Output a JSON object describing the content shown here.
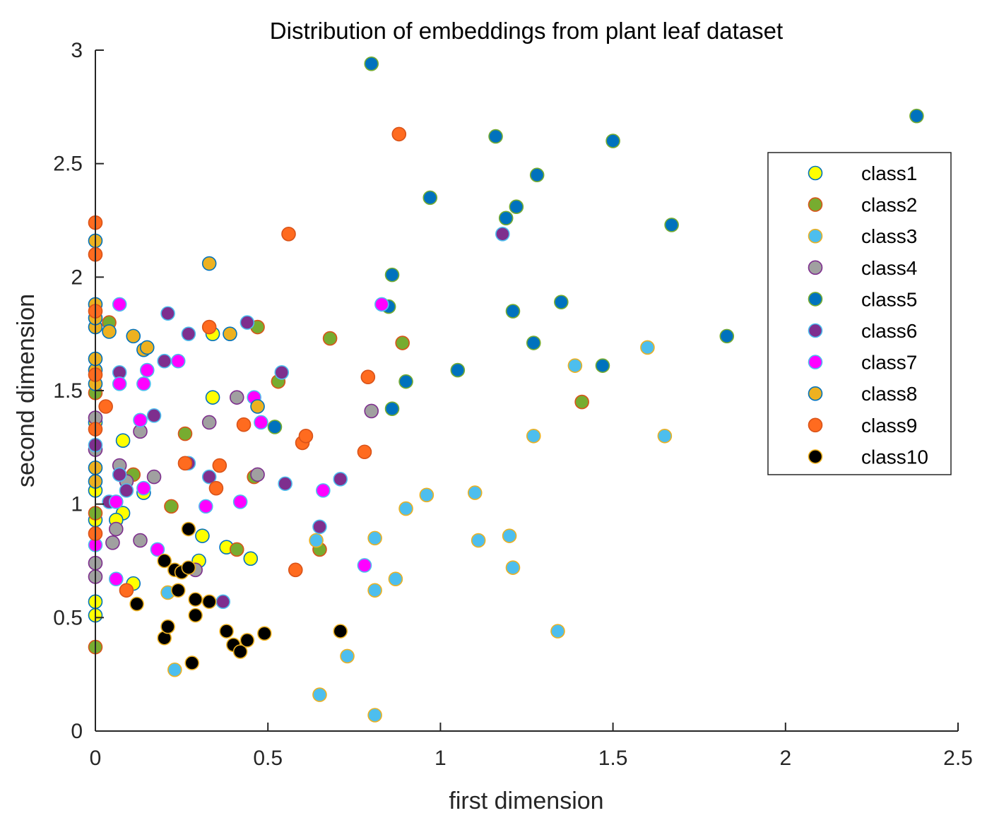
{
  "chart_data": {
    "type": "scatter",
    "title": "Distribution of embeddings from plant leaf dataset",
    "xlabel": "first dimension",
    "ylabel": "second dimension",
    "xlim": [
      0,
      2.5
    ],
    "ylim": [
      0,
      3
    ],
    "xticks": [
      "0",
      "0.5",
      "1",
      "1.5",
      "2",
      "2.5"
    ],
    "yticks": [
      "0",
      "0.5",
      "1",
      "1.5",
      "2",
      "2.5",
      "3"
    ],
    "legend_position": "top-right",
    "series": [
      {
        "name": "class1",
        "fill": "#ffff00",
        "edge": "#0072bd",
        "points": [
          [
            0,
            0.51
          ],
          [
            0,
            0.57
          ],
          [
            0,
            0.93
          ],
          [
            0,
            1.06
          ],
          [
            0,
            1.36
          ],
          [
            0.08,
            0.96
          ],
          [
            0.08,
            1.28
          ],
          [
            0.14,
            1.05
          ],
          [
            0.3,
            0.75
          ],
          [
            0.31,
            0.86
          ],
          [
            0.34,
            1.47
          ],
          [
            0.34,
            1.75
          ],
          [
            0.38,
            0.81
          ],
          [
            0.45,
            0.76
          ],
          [
            0.11,
            0.65
          ],
          [
            0.06,
            0.93
          ]
        ]
      },
      {
        "name": "class2",
        "fill": "#77ac30",
        "edge": "#d95319",
        "points": [
          [
            0,
            0.37
          ],
          [
            0,
            0.96
          ],
          [
            0,
            1.49
          ],
          [
            0.04,
            1.8
          ],
          [
            0.11,
            1.13
          ],
          [
            0.22,
            0.99
          ],
          [
            0.26,
            1.31
          ],
          [
            0.41,
            0.8
          ],
          [
            0.47,
            1.78
          ],
          [
            0.53,
            1.54
          ],
          [
            0.65,
            0.8
          ],
          [
            0.68,
            1.73
          ],
          [
            0.89,
            1.71
          ],
          [
            1.41,
            1.45
          ],
          [
            0.46,
            1.12
          ]
        ]
      },
      {
        "name": "class3",
        "fill": "#4dbeee",
        "edge": "#edb120",
        "points": [
          [
            0.23,
            0.27
          ],
          [
            0.21,
            0.61
          ],
          [
            0.65,
            0.16
          ],
          [
            0.73,
            0.33
          ],
          [
            0.64,
            0.84
          ],
          [
            0.81,
            0.62
          ],
          [
            0.81,
            0.85
          ],
          [
            0.81,
            0.07
          ],
          [
            0.87,
            0.67
          ],
          [
            0.9,
            0.98
          ],
          [
            0.96,
            1.04
          ],
          [
            1.1,
            1.05
          ],
          [
            1.11,
            0.84
          ],
          [
            1.2,
            0.86
          ],
          [
            1.21,
            0.72
          ],
          [
            1.27,
            1.3
          ],
          [
            1.34,
            0.44
          ],
          [
            1.39,
            1.61
          ],
          [
            1.6,
            1.69
          ],
          [
            1.65,
            1.3
          ]
        ]
      },
      {
        "name": "class4",
        "fill": "#a0a0a0",
        "edge": "#7e2f8e",
        "points": [
          [
            0,
            0.68
          ],
          [
            0,
            0.74
          ],
          [
            0,
            1.24
          ],
          [
            0,
            1.38
          ],
          [
            0.05,
            0.83
          ],
          [
            0.06,
            0.89
          ],
          [
            0.07,
            1.17
          ],
          [
            0.09,
            1.1
          ],
          [
            0.13,
            0.84
          ],
          [
            0.13,
            1.32
          ],
          [
            0.17,
            1.12
          ],
          [
            0.33,
            1.36
          ],
          [
            0.41,
            1.47
          ],
          [
            0.47,
            1.13
          ],
          [
            0.8,
            1.41
          ],
          [
            0.29,
            0.71
          ]
        ]
      },
      {
        "name": "class5",
        "fill": "#0072bd",
        "edge": "#77ac30",
        "points": [
          [
            0.52,
            1.34
          ],
          [
            0.8,
            2.94
          ],
          [
            0.85,
            1.87
          ],
          [
            0.86,
            2.01
          ],
          [
            0.86,
            1.42
          ],
          [
            0.9,
            1.54
          ],
          [
            0.97,
            2.35
          ],
          [
            1.05,
            1.59
          ],
          [
            1.16,
            2.62
          ],
          [
            1.19,
            2.26
          ],
          [
            1.21,
            1.85
          ],
          [
            1.22,
            2.31
          ],
          [
            1.27,
            1.71
          ],
          [
            1.28,
            2.45
          ],
          [
            1.35,
            1.89
          ],
          [
            1.47,
            1.61
          ],
          [
            1.5,
            2.6
          ],
          [
            1.67,
            2.23
          ],
          [
            1.83,
            1.74
          ],
          [
            2.38,
            2.71
          ]
        ]
      },
      {
        "name": "class6",
        "fill": "#7e2f8e",
        "edge": "#4dbeee",
        "points": [
          [
            0,
            1.26
          ],
          [
            0.04,
            1.01
          ],
          [
            0.07,
            1.13
          ],
          [
            0.07,
            1.58
          ],
          [
            0.09,
            1.06
          ],
          [
            0.17,
            1.39
          ],
          [
            0.2,
            1.63
          ],
          [
            0.21,
            1.84
          ],
          [
            0.27,
            1.75
          ],
          [
            0.27,
            1.18
          ],
          [
            0.33,
            1.12
          ],
          [
            0.37,
            0.57
          ],
          [
            0.44,
            1.8
          ],
          [
            0.54,
            1.58
          ],
          [
            0.55,
            1.09
          ],
          [
            0.65,
            0.9
          ],
          [
            0.71,
            1.11
          ],
          [
            1.18,
            2.19
          ]
        ]
      },
      {
        "name": "class7",
        "fill": "#ff00ff",
        "edge": "#4dbeee",
        "points": [
          [
            0,
            0.82
          ],
          [
            0.06,
            0.67
          ],
          [
            0.06,
            1.01
          ],
          [
            0.07,
            1.53
          ],
          [
            0.07,
            1.88
          ],
          [
            0.13,
            1.37
          ],
          [
            0.14,
            1.53
          ],
          [
            0.14,
            1.07
          ],
          [
            0.15,
            1.59
          ],
          [
            0.18,
            0.8
          ],
          [
            0.24,
            1.63
          ],
          [
            0.32,
            0.99
          ],
          [
            0.42,
            1.01
          ],
          [
            0.46,
            1.47
          ],
          [
            0.48,
            1.36
          ],
          [
            0.66,
            1.06
          ],
          [
            0.78,
            0.73
          ],
          [
            0.83,
            1.88
          ]
        ]
      },
      {
        "name": "class8",
        "fill": "#edb120",
        "edge": "#0072bd",
        "points": [
          [
            0,
            1.1
          ],
          [
            0,
            1.16
          ],
          [
            0,
            1.53
          ],
          [
            0,
            1.59
          ],
          [
            0,
            1.64
          ],
          [
            0,
            1.78
          ],
          [
            0,
            1.82
          ],
          [
            0,
            1.88
          ],
          [
            0,
            2.16
          ],
          [
            0.04,
            1.76
          ],
          [
            0.11,
            1.74
          ],
          [
            0.14,
            1.68
          ],
          [
            0.15,
            1.69
          ],
          [
            0.33,
            2.06
          ],
          [
            0.39,
            1.75
          ],
          [
            0.47,
            1.43
          ]
        ]
      },
      {
        "name": "class9",
        "fill": "#ff6b1f",
        "edge": "#d95319",
        "points": [
          [
            0,
            0.87
          ],
          [
            0,
            1.33
          ],
          [
            0,
            1.57
          ],
          [
            0,
            1.85
          ],
          [
            0,
            2.1
          ],
          [
            0,
            2.24
          ],
          [
            0.03,
            1.43
          ],
          [
            0.09,
            0.62
          ],
          [
            0.26,
            1.18
          ],
          [
            0.33,
            1.78
          ],
          [
            0.35,
            1.07
          ],
          [
            0.36,
            1.17
          ],
          [
            0.43,
            1.35
          ],
          [
            0.56,
            2.19
          ],
          [
            0.58,
            0.71
          ],
          [
            0.6,
            1.27
          ],
          [
            0.61,
            1.3
          ],
          [
            0.78,
            1.23
          ],
          [
            0.79,
            1.56
          ],
          [
            0.88,
            2.63
          ]
        ]
      },
      {
        "name": "class10",
        "fill": "#000000",
        "edge": "#edb120",
        "points": [
          [
            0.12,
            0.56
          ],
          [
            0.2,
            0.41
          ],
          [
            0.2,
            0.75
          ],
          [
            0.21,
            0.46
          ],
          [
            0.23,
            0.71
          ],
          [
            0.24,
            0.62
          ],
          [
            0.25,
            0.7
          ],
          [
            0.27,
            0.72
          ],
          [
            0.27,
            0.89
          ],
          [
            0.28,
            0.3
          ],
          [
            0.29,
            0.51
          ],
          [
            0.29,
            0.58
          ],
          [
            0.33,
            0.57
          ],
          [
            0.38,
            0.44
          ],
          [
            0.4,
            0.38
          ],
          [
            0.42,
            0.35
          ],
          [
            0.44,
            0.4
          ],
          [
            0.49,
            0.43
          ],
          [
            0.71,
            0.44
          ]
        ]
      }
    ]
  }
}
